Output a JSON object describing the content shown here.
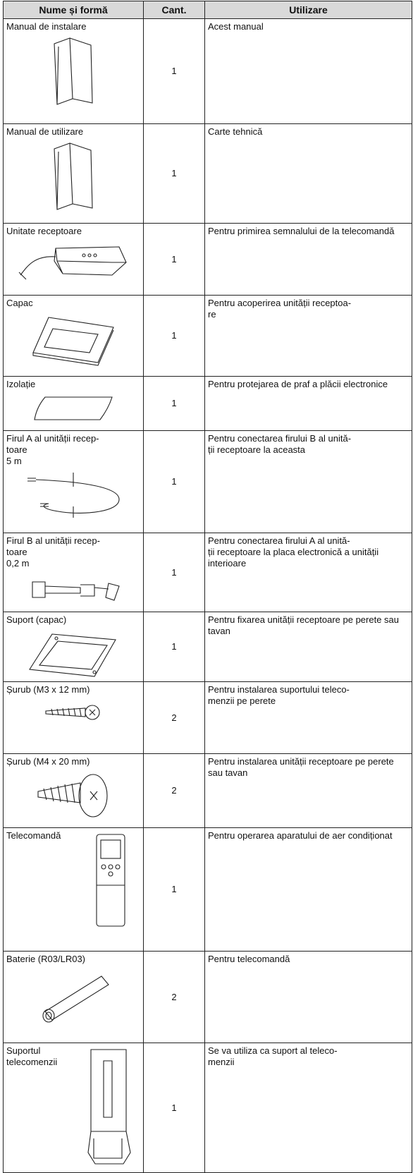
{
  "table": {
    "header": [
      "Nume și formă",
      "Cant.",
      "Utilizare"
    ],
    "rows": [
      {
        "name": "Manual de instalare",
        "qty": 1,
        "use": "Acest manual"
      },
      {
        "name": "Manual de utilizare",
        "qty": 1,
        "use": "Carte tehnică"
      },
      {
        "name": "Unitate receptoare",
        "qty": 1,
        "use": "Pentru primirea semnalului de la telecomandă"
      },
      {
        "name": "Capac",
        "qty": 1,
        "use": "Pentru acoperirea unității receptoa-\nre"
      },
      {
        "name": "Izolație",
        "qty": 1,
        "use": "Pentru protejarea de praf a plăcii electronice"
      },
      {
        "name": "Firul A al unității recep-\ntoare",
        "spec": "5 m",
        "qty": 1,
        "use": "Pentru conectarea firului B al unită-\nții receptoare la aceasta"
      },
      {
        "name": "Firul B al unității recep-\ntoare",
        "spec": "0,2 m",
        "qty": 1,
        "use": "Pentru conectarea firului A al unită-\nții receptoare la placa electronică a unității interioare"
      },
      {
        "name": "Suport (capac)",
        "qty": 1,
        "use": "Pentru fixarea unității receptoare pe perete sau tavan"
      },
      {
        "name": "Șurub (M3 x 12 mm)",
        "qty": 2,
        "use": "Pentru instalarea suportului teleco-\nmenzii pe perete"
      },
      {
        "name": "Șurub (M4 x 20 mm)",
        "qty": 2,
        "use": "Pentru instalarea unității receptoare pe perete sau tavan"
      },
      {
        "name": "Telecomandă",
        "qty": 1,
        "use": "Pentru operarea aparatului de aer condiționat"
      },
      {
        "name": "Baterie (R03/LR03)",
        "qty": 2,
        "use": "Pentru telecomandă"
      },
      {
        "name": "Suportul\ntelecomenzii",
        "qty": 1,
        "use": "Se va utiliza ca suport al teleco-\nmenzii"
      }
    ]
  }
}
